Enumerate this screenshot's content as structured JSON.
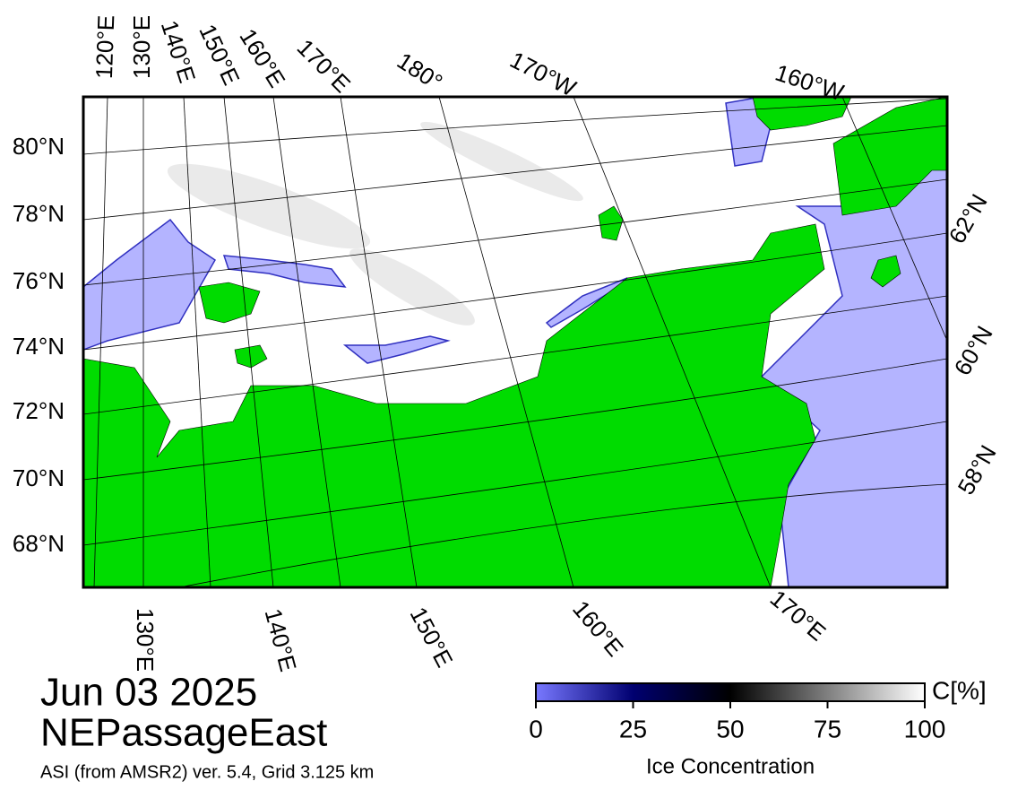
{
  "map": {
    "labels": {
      "top": [
        "120°E",
        "130°E",
        "140°E",
        "150°E",
        "160°E",
        "170°E",
        "180°",
        "170°W",
        "160°W"
      ],
      "left": [
        "80°N",
        "78°N",
        "76°N",
        "74°N",
        "72°N",
        "70°N",
        "68°N"
      ],
      "right": [
        "62°N",
        "60°N",
        "58°N"
      ],
      "bottom": [
        "130°E",
        "140°E",
        "150°E",
        "160°E",
        "170°E"
      ]
    },
    "date": "Jun 03 2025",
    "region": "NEPassageEast",
    "source": "ASI (from AMSR2) ver. 5.4,  Grid 3.125 km",
    "colorbar": {
      "unit": "C[%]",
      "title": "Ice Concentration",
      "lim": [
        0,
        100
      ],
      "ticks": [
        0,
        25,
        50,
        75,
        100
      ]
    }
  }
}
